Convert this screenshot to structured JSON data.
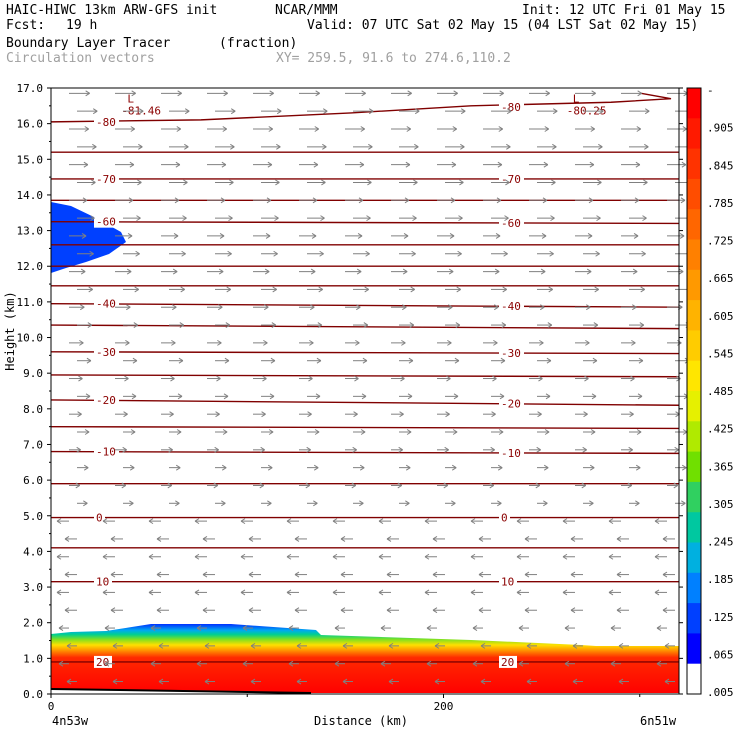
{
  "header": {
    "model": "HAIC-HIWC 13km ARW-GFS init",
    "org": "NCAR/MMM",
    "init": "Init: 12 UTC Fri 01 May 15",
    "fcst_label": "Fcst:",
    "fcst_value": "19 h",
    "valid": "Valid: 07 UTC Sat 02 May 15 (04 LST Sat 02 May 15)",
    "field": "Boundary Layer Tracer",
    "field_units": "(fraction)",
    "vectors": "Circulation vectors",
    "xy": "XY= 259.5, 91.6 to 274.6,110.2"
  },
  "chart_data": {
    "type": "heatmap",
    "title": "Boundary Layer Tracer",
    "units": "fraction",
    "xlabel": "Distance (km)",
    "ylabel": "Height (km)",
    "xlim": [
      0,
      320
    ],
    "ylim": [
      0,
      17
    ],
    "x_ticks": [
      {
        "v": 0,
        "label": "0"
      },
      {
        "v": 200,
        "label": "200"
      }
    ],
    "x_end_labels": {
      "left": "4n53w",
      "right": "6n51w"
    },
    "y_ticks": [
      "0.0",
      "1.0",
      "2.0",
      "3.0",
      "4.0",
      "5.0",
      "6.0",
      "7.0",
      "8.0",
      "9.0",
      "10.0",
      "11.0",
      "12.0",
      "13.0",
      "14.0",
      "15.0",
      "16.0",
      "17.0"
    ],
    "colorbar": {
      "labels": [
        "-",
        ".905",
        ".845",
        ".785",
        ".725",
        ".665",
        ".605",
        ".545",
        ".485",
        ".425",
        ".365",
        ".305",
        ".245",
        ".185",
        ".125",
        ".065",
        ".005"
      ],
      "colors": [
        "#ff0000",
        "#ff1a00",
        "#ff3300",
        "#ff4d00",
        "#ff6600",
        "#ff8000",
        "#ff9900",
        "#ffb300",
        "#ffcc00",
        "#ffe600",
        "#e6f000",
        "#b0ea00",
        "#70e000",
        "#30d060",
        "#00c8a0",
        "#00b0e0",
        "#0080ff",
        "#0040ff",
        "#0000ff",
        "#ffffff"
      ]
    },
    "temperature_contours": [
      {
        "label": "-80",
        "y_left": 16.05,
        "y_right": 16.7
      },
      {
        "label": "",
        "y_left": 15.2,
        "y_right": 15.2
      },
      {
        "label": "-70",
        "y_left": 14.45,
        "y_right": 14.45
      },
      {
        "label": "",
        "y_left": 13.85,
        "y_right": 13.85
      },
      {
        "label": "-60",
        "y_left": 13.25,
        "y_right": 13.2
      },
      {
        "label": "",
        "y_left": 12.6,
        "y_right": 12.6
      },
      {
        "label": "",
        "y_left": 12.0,
        "y_right": 12.0
      },
      {
        "label": "",
        "y_left": 11.45,
        "y_right": 11.45
      },
      {
        "label": "-40",
        "y_left": 10.95,
        "y_right": 10.85
      },
      {
        "label": "",
        "y_left": 10.35,
        "y_right": 10.25
      },
      {
        "label": "-30",
        "y_left": 9.6,
        "y_right": 9.55
      },
      {
        "label": "",
        "y_left": 8.95,
        "y_right": 8.9
      },
      {
        "label": "-20",
        "y_left": 8.25,
        "y_right": 8.1
      },
      {
        "label": "",
        "y_left": 7.5,
        "y_right": 7.45
      },
      {
        "label": "-10",
        "y_left": 6.8,
        "y_right": 6.75
      },
      {
        "label": "",
        "y_left": 5.9,
        "y_right": 5.9
      },
      {
        "label": "0",
        "y_left": 4.95,
        "y_right": 4.95
      },
      {
        "label": "",
        "y_left": 4.1,
        "y_right": 4.1
      },
      {
        "label": "10",
        "y_left": 3.15,
        "y_right": 3.15
      },
      {
        "label": "20",
        "y_left": 0.9,
        "y_right": 0.9
      }
    ],
    "extrema_labels": [
      {
        "label": "L",
        "value": "-81.46",
        "x": 45,
        "y": 16.6
      },
      {
        "label": "L",
        "value": "-80.25",
        "x": 272,
        "y": 16.6
      }
    ]
  }
}
